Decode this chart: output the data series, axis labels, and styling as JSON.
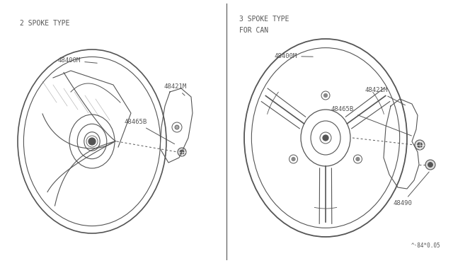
{
  "bg_color": "#ffffff",
  "line_color": "#555555",
  "text_color": "#555555",
  "fig_width": 6.4,
  "fig_height": 3.72,
  "dpi": 100,
  "left_title": "2 SPOKE TYPE",
  "right_title_line1": "3 SPOKE TYPE",
  "right_title_line2": "FOR CAN",
  "watermark": "^·84*0.05"
}
